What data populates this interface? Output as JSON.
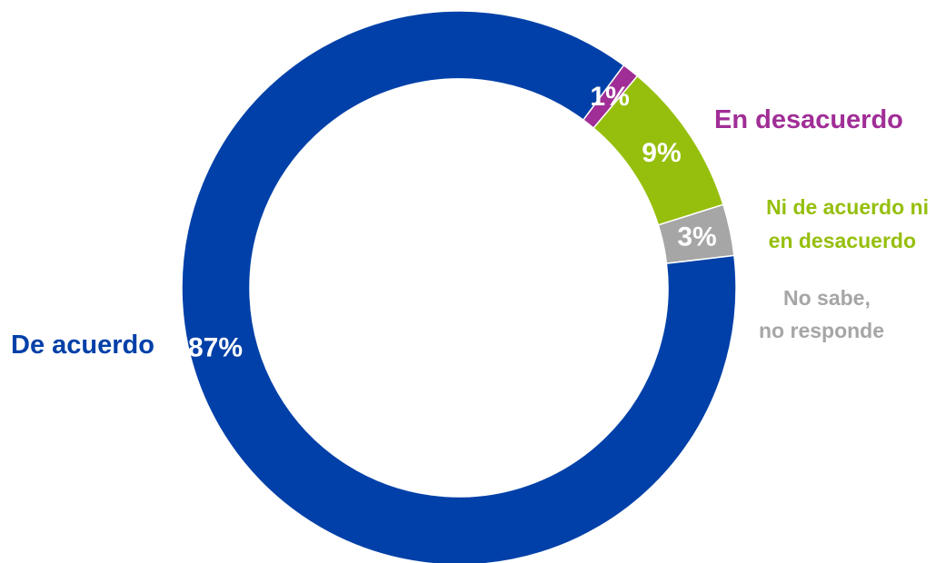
{
  "chart_data": {
    "type": "pie",
    "style": "donut",
    "categories": [
      "De acuerdo",
      "En desacuerdo",
      "Ni de acuerdo ni en desacuerdo",
      "No sabe, no responde"
    ],
    "values": [
      87,
      1,
      9,
      3
    ],
    "value_labels": [
      "87%",
      "1%",
      "9%",
      "3%"
    ],
    "colors": [
      "#0040a8",
      "#a02e96",
      "#96bf0d",
      "#a6a6a6"
    ],
    "legend": {
      "de_acuerdo": "De acuerdo",
      "en_desacuerdo": "En desacuerdo",
      "ni_line1": "Ni de acuerdo ni",
      "ni_line2": "en desacuerdo",
      "ns_line1": "No sabe,",
      "ns_line2": "no responde"
    }
  }
}
